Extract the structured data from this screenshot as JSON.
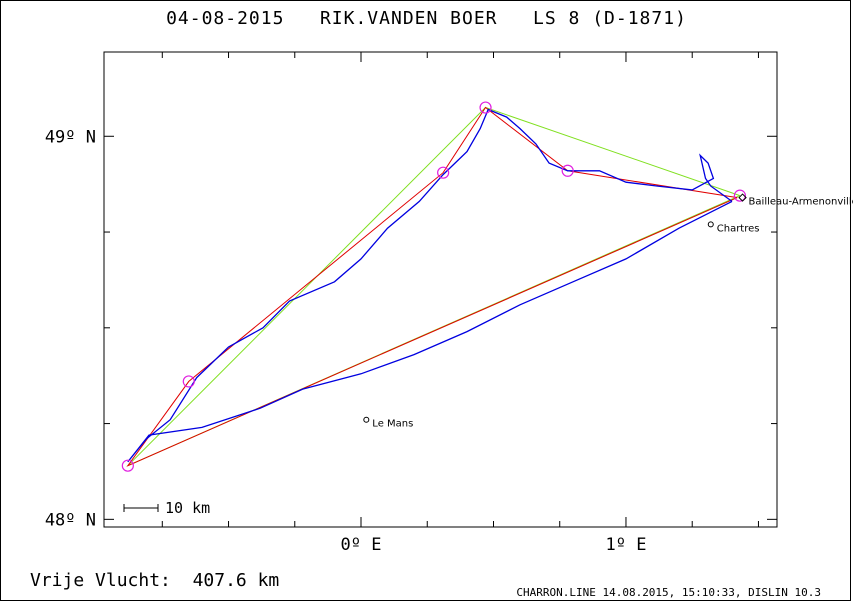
{
  "header": {
    "title": "04-08-2015   RIK.VANDEN BOER   LS 8 (D-1871)"
  },
  "axes": {
    "lat_labels": [
      {
        "text": "49º N",
        "lat": 49.0
      },
      {
        "text": "48º N",
        "lat": 48.0
      }
    ],
    "lon_labels": [
      {
        "text": "0º E",
        "lon": 0.0
      },
      {
        "text": "1º E",
        "lon": 1.0
      }
    ],
    "lon_range": [
      -0.97,
      1.57
    ],
    "lat_range": [
      47.98,
      49.22
    ]
  },
  "scale_bar": {
    "label": "10 km"
  },
  "places": [
    {
      "name": "Le Mans",
      "lon": 0.02,
      "lat": 48.26,
      "marker": "circle"
    },
    {
      "name": "Chartres",
      "lon": 1.32,
      "lat": 48.77,
      "marker": "circle"
    },
    {
      "name": "Bailleau-Armenonville",
      "lon": 1.44,
      "lat": 48.84,
      "marker": "diamond"
    }
  ],
  "turnpoints": [
    {
      "lon": 1.43,
      "lat": 48.845
    },
    {
      "lon": 0.47,
      "lat": 49.075
    },
    {
      "lon": 0.31,
      "lat": 48.905
    },
    {
      "lon": -0.65,
      "lat": 48.36
    },
    {
      "lon": -0.88,
      "lat": 48.14
    },
    {
      "lon": 0.78,
      "lat": 48.91
    }
  ],
  "task_lines": {
    "color": "#80e020",
    "points": [
      {
        "lon": 1.43,
        "lat": 48.845
      },
      {
        "lon": 0.47,
        "lat": 49.075
      },
      {
        "lon": -0.88,
        "lat": 48.14
      },
      {
        "lon": 1.43,
        "lat": 48.845
      }
    ]
  },
  "leg_lines": {
    "color": "#e00000",
    "points": [
      {
        "lon": 1.42,
        "lat": 48.84
      },
      {
        "lon": 0.78,
        "lat": 48.91
      },
      {
        "lon": 0.47,
        "lat": 49.075
      },
      {
        "lon": 0.31,
        "lat": 48.905
      },
      {
        "lon": -0.65,
        "lat": 48.36
      },
      {
        "lon": -0.88,
        "lat": 48.14
      },
      {
        "lon": 1.42,
        "lat": 48.84
      }
    ]
  },
  "flight_track": {
    "color": "#0000e0",
    "points": [
      {
        "lon": 1.4,
        "lat": 48.83
      },
      {
        "lon": 1.32,
        "lat": 48.87
      },
      {
        "lon": 1.3,
        "lat": 48.89
      },
      {
        "lon": 1.28,
        "lat": 48.95
      },
      {
        "lon": 1.31,
        "lat": 48.93
      },
      {
        "lon": 1.33,
        "lat": 48.89
      },
      {
        "lon": 1.25,
        "lat": 48.86
      },
      {
        "lon": 1.12,
        "lat": 48.87
      },
      {
        "lon": 1.0,
        "lat": 48.88
      },
      {
        "lon": 0.9,
        "lat": 48.91
      },
      {
        "lon": 0.78,
        "lat": 48.91
      },
      {
        "lon": 0.71,
        "lat": 48.93
      },
      {
        "lon": 0.66,
        "lat": 48.98
      },
      {
        "lon": 0.6,
        "lat": 49.02
      },
      {
        "lon": 0.55,
        "lat": 49.05
      },
      {
        "lon": 0.48,
        "lat": 49.07
      },
      {
        "lon": 0.45,
        "lat": 49.02
      },
      {
        "lon": 0.4,
        "lat": 48.96
      },
      {
        "lon": 0.31,
        "lat": 48.9
      },
      {
        "lon": 0.22,
        "lat": 48.83
      },
      {
        "lon": 0.1,
        "lat": 48.76
      },
      {
        "lon": 0.0,
        "lat": 48.68
      },
      {
        "lon": -0.1,
        "lat": 48.62
      },
      {
        "lon": -0.27,
        "lat": 48.57
      },
      {
        "lon": -0.37,
        "lat": 48.5
      },
      {
        "lon": -0.5,
        "lat": 48.45
      },
      {
        "lon": -0.62,
        "lat": 48.37
      },
      {
        "lon": -0.72,
        "lat": 48.26
      },
      {
        "lon": -0.81,
        "lat": 48.21
      },
      {
        "lon": -0.88,
        "lat": 48.15
      },
      {
        "lon": -0.8,
        "lat": 48.22
      },
      {
        "lon": -0.6,
        "lat": 48.24
      },
      {
        "lon": -0.38,
        "lat": 48.29
      },
      {
        "lon": -0.22,
        "lat": 48.34
      },
      {
        "lon": 0.0,
        "lat": 48.38
      },
      {
        "lon": 0.2,
        "lat": 48.43
      },
      {
        "lon": 0.4,
        "lat": 48.49
      },
      {
        "lon": 0.6,
        "lat": 48.56
      },
      {
        "lon": 0.8,
        "lat": 48.62
      },
      {
        "lon": 1.0,
        "lat": 48.68
      },
      {
        "lon": 1.2,
        "lat": 48.76
      },
      {
        "lon": 1.4,
        "lat": 48.83
      }
    ]
  },
  "distance": {
    "label": "Vrije Vlucht:",
    "value": "407.6 km"
  },
  "footer": {
    "text": "CHARRON.LINE 14.08.2015, 15:10:33, DISLIN 10.3"
  }
}
